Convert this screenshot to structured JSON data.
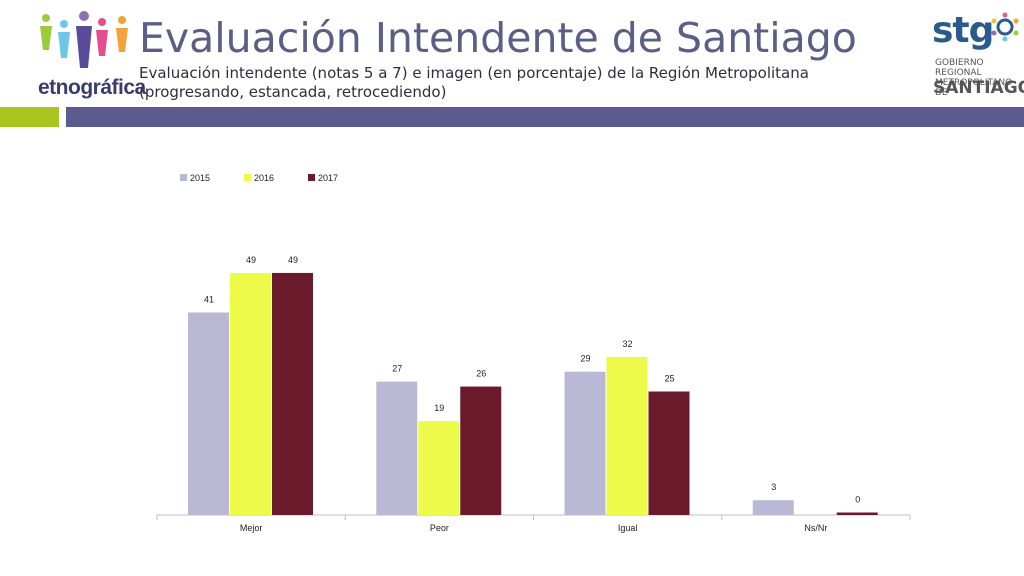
{
  "header": {
    "title": "Evaluación Intendente de Santiago",
    "subtitle": "Evaluación intendente (notas 5 a 7) e imagen (en porcentaje) de la Región Metropolitana (progresando, estancada, retrocediendo)",
    "logo_left_text": "etnográfica",
    "logo_right_brand": "stg",
    "logo_right_org_line1": "GOBIERNO REGIONAL",
    "logo_right_org_line2": "METROPOLITANO DE",
    "logo_right_org_line3": "SANTIAGO"
  },
  "colors": {
    "band_green": "#a8c520",
    "band_purple": "#5b5b8f",
    "s2015": "#b9b9d6",
    "s2016": "#eefa4a",
    "s2017": "#6b1a2c"
  },
  "chart_data": {
    "type": "bar",
    "categories": [
      "Mejor",
      "Peor",
      "Igual",
      "Ns/Nr"
    ],
    "series": [
      {
        "name": "2015",
        "values": [
          41,
          27,
          29,
          3
        ]
      },
      {
        "name": "2016",
        "values": [
          49,
          19,
          32,
          null
        ]
      },
      {
        "name": "2017",
        "values": [
          49,
          26,
          25,
          0
        ]
      }
    ],
    "value_labels": [
      [
        "41",
        "27",
        "29",
        "3"
      ],
      [
        "49",
        "19",
        "32",
        ""
      ],
      [
        "49",
        "26",
        "25",
        "0"
      ]
    ],
    "ylim": [
      0,
      50
    ],
    "legend_position": "top-left",
    "grid": false
  }
}
